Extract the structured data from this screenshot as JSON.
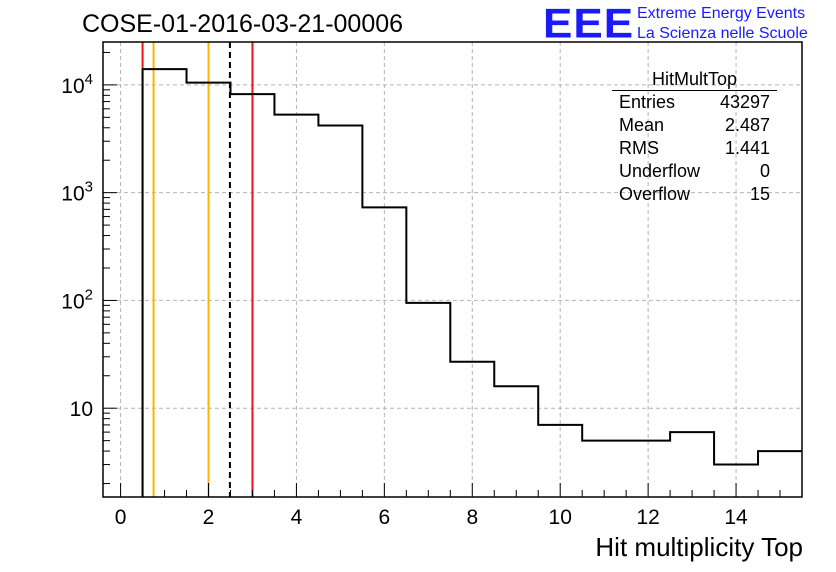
{
  "header": {
    "run_title": "COSE-01-2016-03-21-00006",
    "logo_text": "EEE",
    "logo_line1": "Extreme Energy Events",
    "logo_line2": "La Scienza nelle Scuole"
  },
  "stats_box": {
    "title": "HitMultTop",
    "rows": [
      {
        "label": "Entries",
        "value": "43297"
      },
      {
        "label": "Mean",
        "value": "2.487"
      },
      {
        "label": "RMS",
        "value": "1.441"
      },
      {
        "label": "Underflow",
        "value": "0"
      },
      {
        "label": "Overflow",
        "value": "15"
      }
    ]
  },
  "colors": {
    "axis": "#000000",
    "grid": "#b4b4b4",
    "histogram": "#000000",
    "red_lines": "#e8141e",
    "orange_lines": "#ffb400",
    "mean_line": "#000000",
    "logo": "#1a1aff"
  },
  "chart_data": {
    "type": "histogram",
    "title": "COSE-01-2016-03-21-00006",
    "xlabel": "Hit multiplicity Top",
    "ylabel": "",
    "yscale": "log",
    "xlim": [
      -0.4,
      15.5
    ],
    "ylim": [
      1.5,
      25000
    ],
    "grid": true,
    "x_ticks": [
      0,
      2,
      4,
      6,
      8,
      10,
      12,
      14
    ],
    "y_ticks": [
      {
        "value": 10,
        "label": "10"
      },
      {
        "value": 100,
        "label": "10",
        "exp": "2"
      },
      {
        "value": 1000,
        "label": "10",
        "exp": "3"
      },
      {
        "value": 10000,
        "label": "10",
        "exp": "4"
      }
    ],
    "bins": [
      {
        "low": 0.5,
        "high": 1.5,
        "count": 14000
      },
      {
        "low": 1.5,
        "high": 2.5,
        "count": 10500
      },
      {
        "low": 2.5,
        "high": 3.5,
        "count": 8200
      },
      {
        "low": 3.5,
        "high": 4.5,
        "count": 5300
      },
      {
        "low": 4.5,
        "high": 5.5,
        "count": 4200
      },
      {
        "low": 5.5,
        "high": 6.5,
        "count": 730
      },
      {
        "low": 6.5,
        "high": 7.5,
        "count": 95
      },
      {
        "low": 7.5,
        "high": 8.5,
        "count": 27
      },
      {
        "low": 8.5,
        "high": 9.5,
        "count": 16
      },
      {
        "low": 9.5,
        "high": 10.5,
        "count": 7
      },
      {
        "low": 10.5,
        "high": 11.5,
        "count": 5
      },
      {
        "low": 11.5,
        "high": 12.5,
        "count": 5
      },
      {
        "low": 12.5,
        "high": 13.5,
        "count": 6
      },
      {
        "low": 13.5,
        "high": 14.5,
        "count": 3
      },
      {
        "low": 14.5,
        "high": 15.5,
        "count": 4
      }
    ],
    "vertical_lines": [
      {
        "x": 0.5,
        "color": "#e8141e",
        "style": "solid",
        "name": "red-line-low"
      },
      {
        "x": 3.0,
        "color": "#e8141e",
        "style": "solid",
        "name": "red-line-high"
      },
      {
        "x": 0.75,
        "color": "#ffb400",
        "style": "solid",
        "name": "orange-line-low"
      },
      {
        "x": 2.0,
        "color": "#ffb400",
        "style": "solid",
        "name": "orange-line-high"
      },
      {
        "x": 2.487,
        "color": "#000000",
        "style": "dashed",
        "name": "mean-line"
      }
    ]
  }
}
